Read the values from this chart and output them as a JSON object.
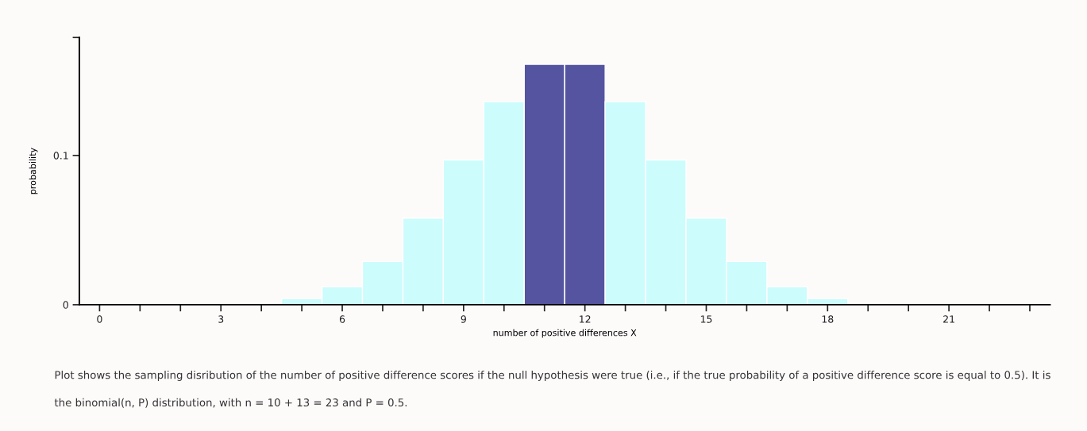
{
  "chart_data": {
    "type": "histogram",
    "bins": [
      -0.5,
      0.5,
      1.5,
      2.5,
      3.5,
      4.5,
      5.5,
      6.5,
      7.5,
      8.5,
      9.5,
      10.5,
      11.5,
      12.5,
      13.5,
      14.5,
      15.5,
      16.5,
      17.5,
      18.5,
      19.5,
      20.5,
      21.5,
      22.5,
      23.5
    ],
    "values": [
      0,
      0,
      0,
      0.0002,
      0.001,
      0.004,
      0.012,
      0.029,
      0.058,
      0.097,
      0.136,
      0.161,
      0.161,
      0.136,
      0.097,
      0.058,
      0.029,
      0.012,
      0.004,
      0.001,
      0.0002,
      0,
      0,
      0
    ],
    "colors": [
      "#ccfcfc",
      "#ccfcfc",
      "#ccfcfc",
      "#ccfcfc",
      "#ccfcfc",
      "#ccfcfc",
      "#ccfcfc",
      "#ccfcfc",
      "#ccfcfc",
      "#ccfcfc",
      "#ccfcfc",
      "#5454a0",
      "#5454a0",
      "#ccfcfc",
      "#ccfcfc",
      "#ccfcfc",
      "#ccfcfc",
      "#ccfcfc",
      "#ccfcfc",
      "#ccfcfc",
      "#ccfcfc",
      "#ccfcfc",
      "#ccfcfc",
      "#ccfcfc"
    ],
    "xlabel": "number of positive differences X",
    "ylabel": "probability",
    "xlim": [
      -0.5,
      23.5
    ],
    "xticks": [
      0,
      {
        "value": 1,
        "label": null
      },
      {
        "value": 2,
        "label": null
      },
      3,
      {
        "value": 4,
        "label": null
      },
      {
        "value": 5,
        "label": null
      },
      6,
      {
        "value": 7,
        "label": null
      },
      {
        "value": 8,
        "label": null
      },
      9,
      {
        "value": 10,
        "label": null
      },
      {
        "value": 11,
        "label": null
      },
      12,
      {
        "value": 13,
        "label": null
      },
      {
        "value": 14,
        "label": null
      },
      15,
      {
        "value": 16,
        "label": null
      },
      {
        "value": 17,
        "label": null
      },
      18,
      {
        "value": 19,
        "label": null
      },
      {
        "value": 20,
        "label": null
      },
      21,
      {
        "value": 22,
        "label": null
      },
      {
        "value": 23,
        "label": null
      }
    ],
    "ylim": [
      0,
      0.179
    ],
    "yticks": [
      0,
      0.1,
      {
        "value": 0.179,
        "label": null
      }
    ],
    "grid": false,
    "legend": false,
    "annotations": [
      "Plot shows the sampling disribution of the number of positive difference scores if the null hypothesis were true (i.e., if the true probability of a positive difference score is equal to 0.5). It is",
      "the binomial(n, P) distribution, with n = 10 + 13 = 23 and P = 0.5."
    ]
  }
}
